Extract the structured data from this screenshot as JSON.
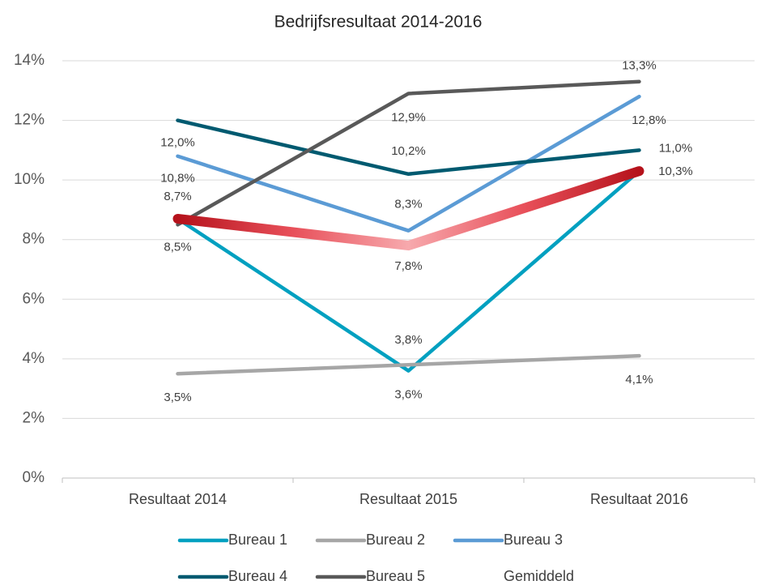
{
  "chart_data": {
    "type": "line",
    "title": "Bedrijfsresultaat 2014-2016",
    "categories": [
      "Resultaat 2014",
      "Resultaat 2015",
      "Resultaat 2016"
    ],
    "ylim": [
      0,
      14
    ],
    "yticks": [
      {
        "value": 0,
        "label": "0%"
      },
      {
        "value": 2,
        "label": "2%"
      },
      {
        "value": 4,
        "label": "4%"
      },
      {
        "value": 6,
        "label": "6%"
      },
      {
        "value": 8,
        "label": "8%"
      },
      {
        "value": 10,
        "label": "10%"
      },
      {
        "value": 12,
        "label": "12%"
      },
      {
        "value": 14,
        "label": "14%"
      }
    ],
    "grid": true,
    "legend": "bottom",
    "series": [
      {
        "name": "Bureau 1",
        "color": "#00a0c0",
        "values": [
          8.7,
          3.6,
          10.3
        ],
        "value_labels": [
          null,
          "3,6%",
          null
        ]
      },
      {
        "name": "Bureau 2",
        "color": "#a6a6a6",
        "values": [
          3.5,
          3.8,
          4.1
        ],
        "value_labels": [
          "3,5%",
          "3,8%",
          "4,1%"
        ]
      },
      {
        "name": "Bureau 3",
        "color": "#5b9bd5",
        "values": [
          10.8,
          8.3,
          12.8
        ],
        "value_labels": [
          "10,8%",
          "8,3%",
          "12,8%"
        ]
      },
      {
        "name": "Bureau 4",
        "color": "#005a70",
        "values": [
          12.0,
          10.2,
          11.0
        ],
        "value_labels": [
          "12,0%",
          "10,2%",
          "11,0%"
        ]
      },
      {
        "name": "Bureau 5",
        "color": "#595959",
        "values": [
          8.5,
          12.9,
          13.3
        ],
        "value_labels": [
          "8,5%",
          "12,9%",
          "13,3%"
        ]
      },
      {
        "name": "Gemiddeld",
        "color": "#c00000",
        "values": [
          8.7,
          7.8,
          10.3
        ],
        "value_labels": [
          "8,7%",
          "7,8%",
          "10,3%"
        ]
      }
    ]
  }
}
